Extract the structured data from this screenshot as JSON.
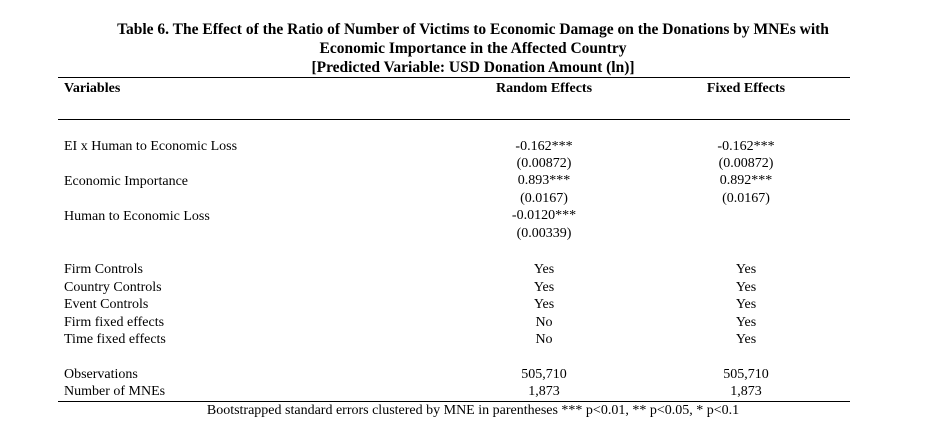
{
  "title": {
    "line1": "Table 6. The Effect of the Ratio of Number of Victims to Economic Damage on the Donations by MNEs with",
    "line2": "Economic Importance in the Affected Country",
    "line3": "[Predicted Variable: USD Donation Amount (ln)]"
  },
  "columns": {
    "variables": "Variables",
    "random": "Random Effects",
    "fixed": "Fixed Effects"
  },
  "coefficients": [
    {
      "label": "EI x Human to Economic Loss",
      "re": "-0.162***",
      "re_se": "(0.00872)",
      "fe": "-0.162***",
      "fe_se": "(0.00872)"
    },
    {
      "label": "Economic Importance",
      "re": "0.893***",
      "re_se": "(0.0167)",
      "fe": "0.892***",
      "fe_se": "(0.0167)"
    },
    {
      "label": "Human to Economic Loss",
      "re": "-0.0120***",
      "re_se": "(0.00339)",
      "fe": "",
      "fe_se": ""
    }
  ],
  "controls": [
    {
      "label": "Firm Controls",
      "re": "Yes",
      "fe": "Yes"
    },
    {
      "label": "Country Controls",
      "re": "Yes",
      "fe": "Yes"
    },
    {
      "label": "Event Controls",
      "re": "Yes",
      "fe": "Yes"
    },
    {
      "label": "Firm fixed effects",
      "re": "No",
      "fe": "Yes"
    },
    {
      "label": "Time fixed effects",
      "re": "No",
      "fe": "Yes"
    }
  ],
  "stats": [
    {
      "label": "Observations",
      "re": "505,710",
      "fe": "505,710"
    },
    {
      "label": "Number of MNEs",
      "re": "1,873",
      "fe": "1,873"
    }
  ],
  "footnote": "Bootstrapped standard errors clustered by MNE in parentheses *** p<0.01, ** p<0.05, * p<0.1"
}
